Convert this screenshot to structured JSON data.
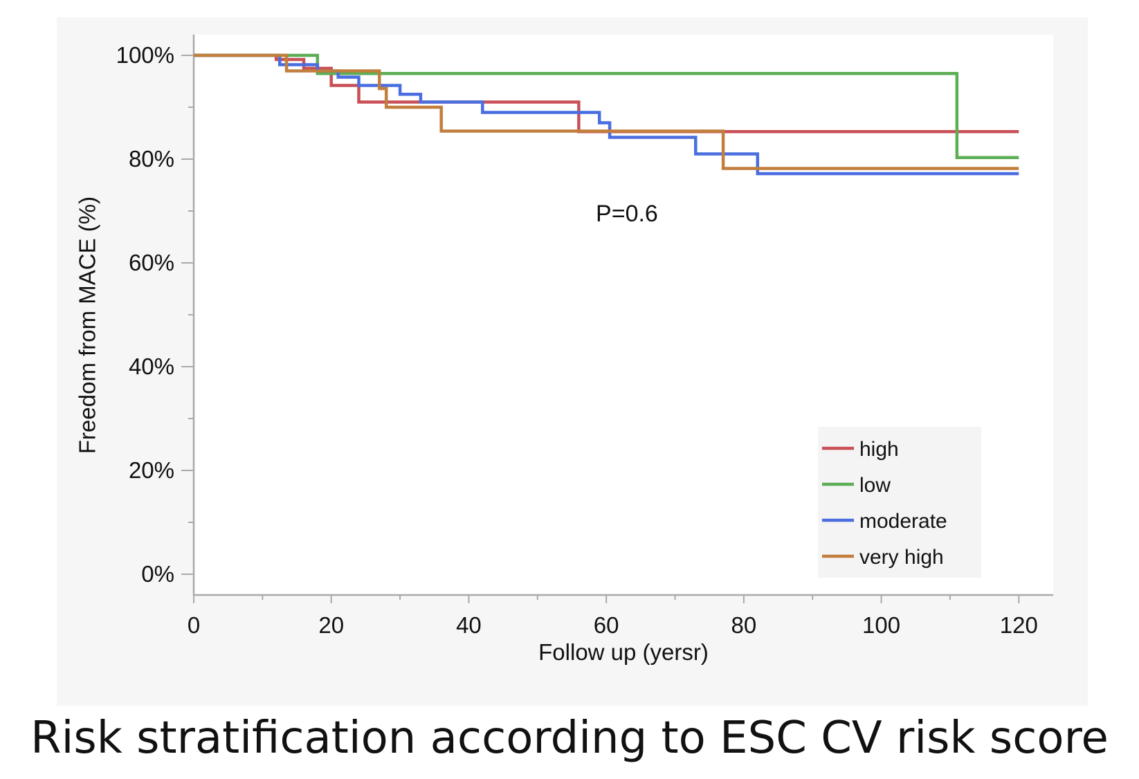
{
  "caption": "Risk stratification according to ESC CV risk score",
  "chart_data": {
    "type": "line",
    "step": true,
    "xlabel": "Follow up (yersr)",
    "ylabel": "Freedom from MACE (%)",
    "xlim": [
      0,
      125
    ],
    "ylim": [
      -4,
      104
    ],
    "x_ticks": [
      "0",
      "20",
      "40",
      "60",
      "80",
      "100",
      "120"
    ],
    "x_tick_values": [
      0,
      20,
      40,
      60,
      80,
      100,
      120
    ],
    "y_ticks": [
      "0%",
      "20%",
      "40%",
      "60%",
      "80%",
      "100%"
    ],
    "y_tick_values": [
      0,
      20,
      40,
      60,
      80,
      100
    ],
    "grid": false,
    "legend_position": "bottom-right",
    "annotation": "P=0.6",
    "annotation_at": [
      63,
      68
    ],
    "series": [
      {
        "name": "high",
        "color": "#c94f57",
        "points": [
          [
            0,
            100
          ],
          [
            12,
            100
          ],
          [
            12,
            99.2
          ],
          [
            16,
            99.2
          ],
          [
            16,
            97.5
          ],
          [
            20,
            97.5
          ],
          [
            20,
            94.2
          ],
          [
            24,
            94.2
          ],
          [
            24,
            91
          ],
          [
            56,
            91
          ],
          [
            56,
            85.3
          ],
          [
            120,
            85.3
          ]
        ]
      },
      {
        "name": "low",
        "color": "#5cad55",
        "points": [
          [
            0,
            100
          ],
          [
            18,
            100
          ],
          [
            18,
            96.5
          ],
          [
            111,
            96.5
          ],
          [
            111,
            80.3
          ],
          [
            120,
            80.3
          ]
        ]
      },
      {
        "name": "moderate",
        "color": "#4a6ee0",
        "points": [
          [
            0,
            100
          ],
          [
            12.5,
            100
          ],
          [
            12.5,
            98.2
          ],
          [
            18,
            98.2
          ],
          [
            18,
            97
          ],
          [
            21,
            97
          ],
          [
            21,
            95.8
          ],
          [
            24,
            95.8
          ],
          [
            24,
            94.2
          ],
          [
            30,
            94.2
          ],
          [
            30,
            92.5
          ],
          [
            33,
            92.5
          ],
          [
            33,
            91
          ],
          [
            42,
            91
          ],
          [
            42,
            89
          ],
          [
            59,
            89
          ],
          [
            59,
            87
          ],
          [
            60.5,
            87
          ],
          [
            60.5,
            84.2
          ],
          [
            73,
            84.2
          ],
          [
            73,
            81
          ],
          [
            82,
            81
          ],
          [
            82,
            77.2
          ],
          [
            120,
            77.2
          ]
        ]
      },
      {
        "name": "very high",
        "color": "#c27e3c",
        "points": [
          [
            0,
            100
          ],
          [
            13.5,
            100
          ],
          [
            13.5,
            97
          ],
          [
            27,
            97
          ],
          [
            27,
            93.6
          ],
          [
            28,
            93.6
          ],
          [
            28,
            90
          ],
          [
            36,
            90
          ],
          [
            36,
            85.4
          ],
          [
            77,
            85.4
          ],
          [
            77,
            78.2
          ],
          [
            120,
            78.2
          ]
        ]
      }
    ]
  }
}
